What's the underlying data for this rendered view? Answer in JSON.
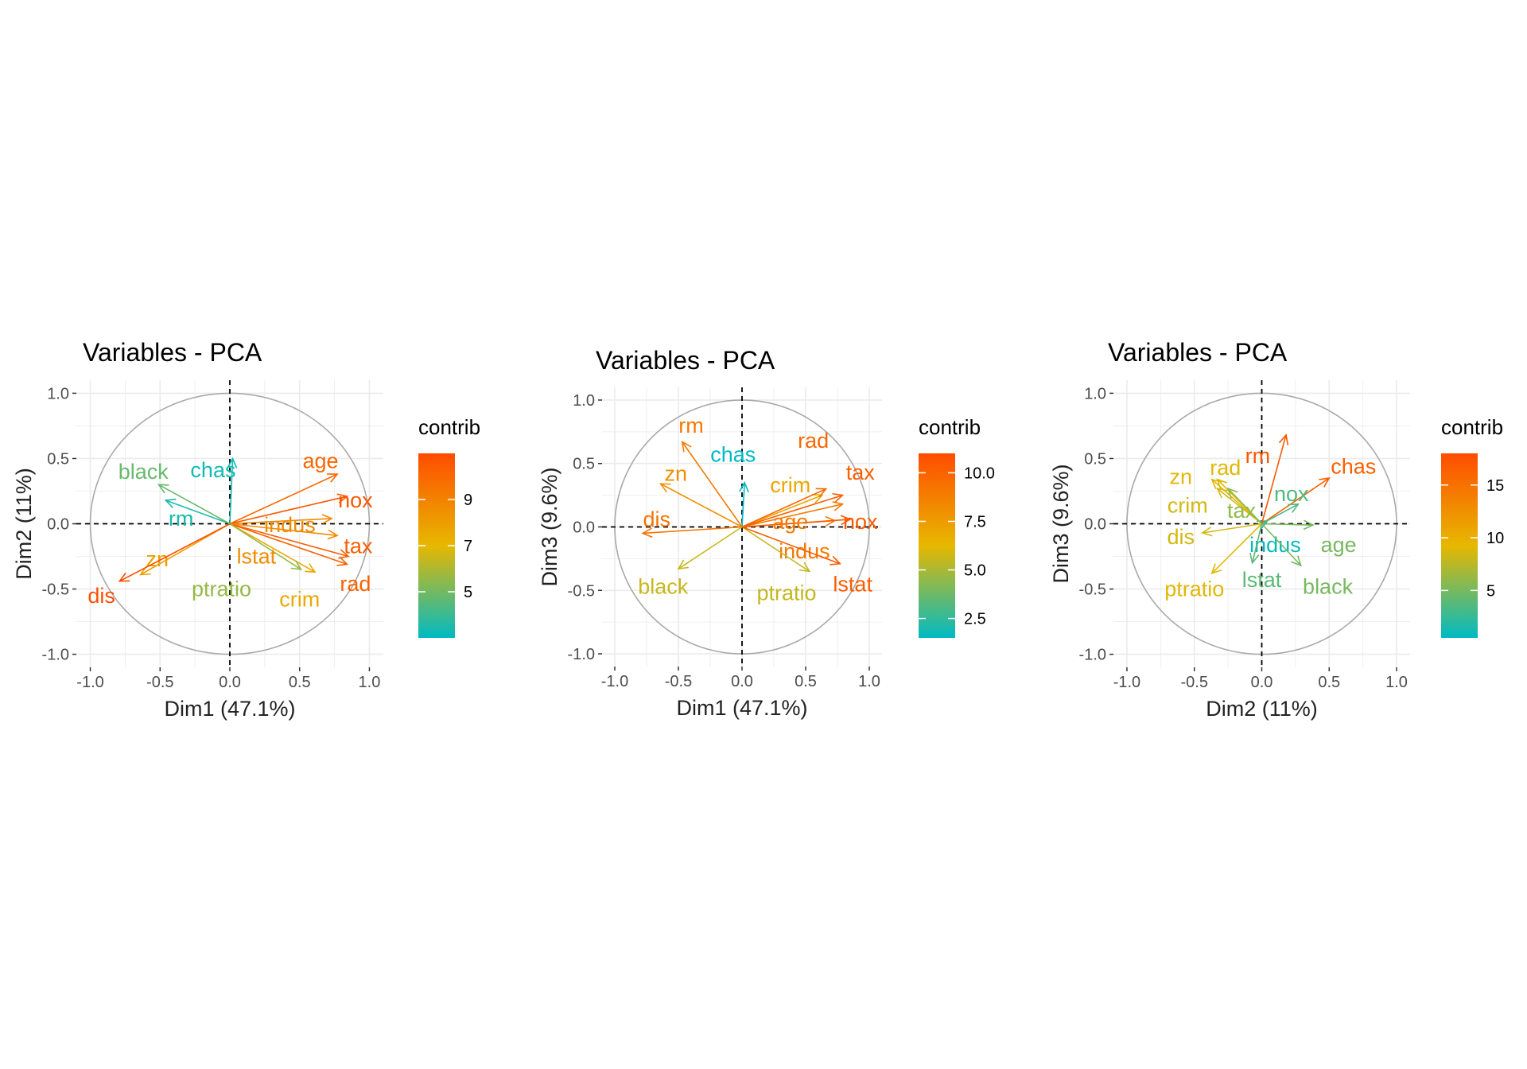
{
  "chart_data": [
    {
      "type": "scatter",
      "title": "Variables - PCA",
      "xlabel": "Dim1 (47.1%)",
      "ylabel": "Dim2 (11%)",
      "xlim": [
        -1.1,
        1.1
      ],
      "ylim": [
        -1.1,
        1.1
      ],
      "xticks": [
        "-1.0",
        "-0.5",
        "0.0",
        "0.5",
        "1.0"
      ],
      "yticks": [
        "-1.0",
        "-0.5",
        "0.0",
        "0.5",
        "1.0"
      ],
      "legend": {
        "title": "contrib",
        "min": 3.0,
        "max": 11.0,
        "ticks": [
          {
            "value": 5,
            "label": "5"
          },
          {
            "value": 7,
            "label": "7"
          },
          {
            "value": 9,
            "label": "9"
          }
        ]
      },
      "grid": true,
      "variables": [
        {
          "name": "crim",
          "x": 0.61,
          "y": -0.37,
          "contrib": 7.6,
          "lx": 0.5,
          "ly": -0.58
        },
        {
          "name": "zn",
          "x": -0.64,
          "y": -0.39,
          "contrib": 7.9,
          "lx": -0.52,
          "ly": -0.27
        },
        {
          "name": "indus",
          "x": 0.73,
          "y": 0.04,
          "contrib": 8.7,
          "lx": 0.43,
          "ly": -0.01
        },
        {
          "name": "chas",
          "x": 0.02,
          "y": 0.5,
          "contrib": 3.3,
          "lx": -0.12,
          "ly": 0.41
        },
        {
          "name": "nox",
          "x": 0.84,
          "y": 0.21,
          "contrib": 10.6,
          "lx": 0.9,
          "ly": 0.18
        },
        {
          "name": "rm",
          "x": -0.46,
          "y": 0.18,
          "contrib": 3.5,
          "lx": -0.35,
          "ly": 0.04
        },
        {
          "name": "age",
          "x": 0.77,
          "y": 0.38,
          "contrib": 10.0,
          "lx": 0.65,
          "ly": 0.48
        },
        {
          "name": "dis",
          "x": -0.79,
          "y": -0.44,
          "contrib": 10.9,
          "lx": -0.92,
          "ly": -0.55
        },
        {
          "name": "rad",
          "x": 0.84,
          "y": -0.31,
          "contrib": 10.2,
          "lx": 0.9,
          "ly": -0.46
        },
        {
          "name": "tax",
          "x": 0.85,
          "y": -0.25,
          "contrib": 10.4,
          "lx": 0.92,
          "ly": -0.17
        },
        {
          "name": "ptratio",
          "x": 0.51,
          "y": -0.35,
          "contrib": 5.6,
          "lx": -0.06,
          "ly": -0.5
        },
        {
          "name": "black",
          "x": -0.51,
          "y": 0.3,
          "contrib": 4.8,
          "lx": -0.62,
          "ly": 0.4
        },
        {
          "name": "lstat",
          "x": 0.77,
          "y": -0.09,
          "contrib": 8.6,
          "lx": 0.19,
          "ly": -0.25
        }
      ]
    },
    {
      "type": "scatter",
      "title": "Variables - PCA",
      "xlabel": "Dim1 (47.1%)",
      "ylabel": "Dim3 (9.6%)",
      "xlim": [
        -1.1,
        1.1
      ],
      "ylim": [
        -1.1,
        1.1
      ],
      "xticks": [
        "-1.0",
        "-0.5",
        "0.0",
        "0.5",
        "1.0"
      ],
      "yticks": [
        "-1.0",
        "-0.5",
        "0.0",
        "0.5",
        "1.0"
      ],
      "legend": {
        "title": "contrib",
        "min": 1.5,
        "max": 11.0,
        "ticks": [
          {
            "value": 2.5,
            "label": "2.5"
          },
          {
            "value": 5.0,
            "label": "5.0"
          },
          {
            "value": 7.5,
            "label": "7.5"
          },
          {
            "value": 10.0,
            "label": "10.0"
          }
        ]
      },
      "grid": true,
      "variables": [
        {
          "name": "crim",
          "x": 0.63,
          "y": 0.25,
          "contrib": 7.0,
          "lx": 0.38,
          "ly": 0.33
        },
        {
          "name": "zn",
          "x": -0.64,
          "y": 0.34,
          "contrib": 8.0,
          "lx": -0.52,
          "ly": 0.42
        },
        {
          "name": "indus",
          "x": 0.73,
          "y": 0.05,
          "contrib": 9.0,
          "lx": 0.49,
          "ly": -0.19
        },
        {
          "name": "chas",
          "x": 0.02,
          "y": 0.35,
          "contrib": 1.5,
          "lx": -0.07,
          "ly": 0.57
        },
        {
          "name": "nox",
          "x": 0.85,
          "y": 0.06,
          "contrib": 10.4,
          "lx": 0.93,
          "ly": 0.04
        },
        {
          "name": "rm",
          "x": -0.47,
          "y": 0.67,
          "contrib": 9.0,
          "lx": -0.4,
          "ly": 0.8
        },
        {
          "name": "age",
          "x": 0.79,
          "y": 0.18,
          "contrib": 9.0,
          "lx": 0.38,
          "ly": 0.04
        },
        {
          "name": "dis",
          "x": -0.78,
          "y": -0.05,
          "contrib": 9.3,
          "lx": -0.67,
          "ly": 0.06
        },
        {
          "name": "rad",
          "x": 0.66,
          "y": 0.3,
          "contrib": 9.8,
          "lx": 0.56,
          "ly": 0.68
        },
        {
          "name": "tax",
          "x": 0.79,
          "y": 0.25,
          "contrib": 10.2,
          "lx": 0.93,
          "ly": 0.43
        },
        {
          "name": "ptratio",
          "x": 0.53,
          "y": -0.35,
          "contrib": 5.5,
          "lx": 0.35,
          "ly": -0.52
        },
        {
          "name": "black",
          "x": -0.5,
          "y": -0.33,
          "contrib": 5.6,
          "lx": -0.62,
          "ly": -0.47
        },
        {
          "name": "lstat",
          "x": 0.77,
          "y": -0.29,
          "contrib": 10.3,
          "lx": 0.87,
          "ly": -0.45
        }
      ]
    },
    {
      "type": "scatter",
      "title": "Variables - PCA",
      "xlabel": "Dim2 (11%)",
      "ylabel": "Dim3 (9.6%)",
      "xlim": [
        -1.1,
        1.1
      ],
      "ylim": [
        -1.1,
        1.1
      ],
      "xticks": [
        "-1.0",
        "-0.5",
        "0.0",
        "0.5",
        "1.0"
      ],
      "yticks": [
        "-1.0",
        "-0.5",
        "0.0",
        "0.5",
        "1.0"
      ],
      "legend": {
        "title": "contrib",
        "min": 0.5,
        "max": 18.0,
        "ticks": [
          {
            "value": 5,
            "label": "5"
          },
          {
            "value": 10,
            "label": "10"
          },
          {
            "value": 15,
            "label": "15"
          }
        ]
      },
      "grid": true,
      "variables": [
        {
          "name": "crim",
          "x": -0.33,
          "y": 0.27,
          "contrib": 8.5,
          "lx": -0.55,
          "ly": 0.14
        },
        {
          "name": "zn",
          "x": -0.37,
          "y": 0.34,
          "contrib": 9.0,
          "lx": -0.6,
          "ly": 0.36
        },
        {
          "name": "indus",
          "x": 0.04,
          "y": 0.02,
          "contrib": 0.8,
          "lx": 0.1,
          "ly": -0.16
        },
        {
          "name": "chas",
          "x": 0.5,
          "y": 0.35,
          "contrib": 16.5,
          "lx": 0.68,
          "ly": 0.44
        },
        {
          "name": "nox",
          "x": 0.27,
          "y": 0.15,
          "contrib": 3.5,
          "lx": 0.22,
          "ly": 0.23
        },
        {
          "name": "rm",
          "x": 0.18,
          "y": 0.68,
          "contrib": 17.0,
          "lx": -0.03,
          "ly": 0.52
        },
        {
          "name": "age",
          "x": 0.38,
          "y": -0.01,
          "contrib": 5.0,
          "lx": 0.57,
          "ly": -0.16
        },
        {
          "name": "dis",
          "x": -0.44,
          "y": -0.07,
          "contrib": 8.5,
          "lx": -0.6,
          "ly": -0.1
        },
        {
          "name": "rad",
          "x": -0.33,
          "y": 0.34,
          "contrib": 9.0,
          "lx": -0.27,
          "ly": 0.43
        },
        {
          "name": "tax",
          "x": -0.25,
          "y": 0.27,
          "contrib": 6.0,
          "lx": -0.15,
          "ly": 0.1
        },
        {
          "name": "ptratio",
          "x": -0.37,
          "y": -0.38,
          "contrib": 9.0,
          "lx": -0.5,
          "ly": -0.5
        },
        {
          "name": "black",
          "x": 0.29,
          "y": -0.32,
          "contrib": 5.0,
          "lx": 0.49,
          "ly": -0.48
        },
        {
          "name": "lstat",
          "x": -0.07,
          "y": -0.3,
          "contrib": 4.0,
          "lx": 0.0,
          "ly": -0.43
        }
      ]
    }
  ]
}
